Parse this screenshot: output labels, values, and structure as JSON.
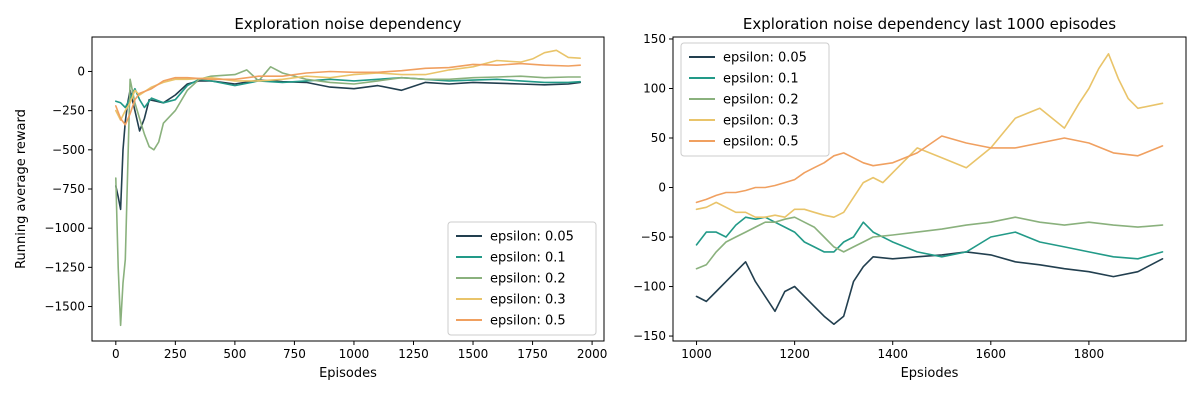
{
  "colors": {
    "epsilon_0_05": "#223f4f",
    "epsilon_0_1": "#229a88",
    "epsilon_0_2": "#8ab17d",
    "epsilon_0_3": "#e9c46a",
    "epsilon_0_5": "#f0a060"
  },
  "chart_data": [
    {
      "type": "line",
      "title": "Exploration noise dependency",
      "xlabel": "Episodes",
      "ylabel": "Running average reward",
      "xlim": [
        -100,
        2050
      ],
      "ylim": [
        -1720,
        220
      ],
      "xticks": [
        0,
        250,
        500,
        750,
        1000,
        1250,
        1500,
        1750,
        2000
      ],
      "yticks": [
        0,
        -250,
        -500,
        -750,
        -1000,
        -1250,
        -1500
      ],
      "grid": false,
      "legend_position": "lower-right",
      "series": [
        {
          "name": "epsilon: 0.05",
          "color": "#223f4f",
          "x": [
            0,
            10,
            20,
            30,
            40,
            50,
            60,
            80,
            100,
            120,
            140,
            170,
            200,
            250,
            300,
            350,
            400,
            500,
            600,
            700,
            800,
            900,
            1000,
            1100,
            1200,
            1300,
            1400,
            1500,
            1600,
            1700,
            1800,
            1900,
            1950
          ],
          "y": [
            -730,
            -800,
            -880,
            -500,
            -320,
            -200,
            -120,
            -250,
            -380,
            -300,
            -180,
            -190,
            -200,
            -150,
            -80,
            -60,
            -60,
            -80,
            -55,
            -65,
            -70,
            -100,
            -110,
            -90,
            -120,
            -70,
            -80,
            -70,
            -75,
            -80,
            -85,
            -80,
            -70
          ]
        },
        {
          "name": "epsilon: 0.1",
          "color": "#229a88",
          "x": [
            0,
            20,
            40,
            60,
            80,
            100,
            120,
            150,
            200,
            250,
            300,
            350,
            400,
            500,
            600,
            700,
            800,
            900,
            1000,
            1100,
            1200,
            1300,
            1400,
            1500,
            1600,
            1700,
            1800,
            1900,
            1950
          ],
          "y": [
            -190,
            -200,
            -230,
            -170,
            -110,
            -180,
            -230,
            -170,
            -200,
            -180,
            -90,
            -50,
            -60,
            -90,
            -60,
            -70,
            -60,
            -50,
            -60,
            -50,
            -40,
            -50,
            -60,
            -55,
            -50,
            -60,
            -70,
            -70,
            -65
          ]
        },
        {
          "name": "epsilon: 0.2",
          "color": "#8ab17d",
          "x": [
            0,
            10,
            20,
            30,
            40,
            60,
            80,
            100,
            120,
            140,
            160,
            180,
            200,
            250,
            300,
            350,
            400,
            500,
            550,
            600,
            650,
            700,
            800,
            900,
            1000,
            1100,
            1200,
            1300,
            1400,
            1500,
            1600,
            1700,
            1800,
            1900,
            1950
          ],
          "y": [
            -680,
            -1250,
            -1620,
            -1350,
            -1200,
            -50,
            -200,
            -300,
            -400,
            -480,
            -500,
            -450,
            -330,
            -250,
            -120,
            -50,
            -30,
            -20,
            10,
            -60,
            30,
            -10,
            -50,
            -70,
            -80,
            -60,
            -40,
            -50,
            -50,
            -40,
            -35,
            -30,
            -40,
            -35,
            -35
          ]
        },
        {
          "name": "epsilon: 0.3",
          "color": "#e9c46a",
          "x": [
            0,
            20,
            40,
            60,
            80,
            100,
            150,
            200,
            250,
            300,
            400,
            500,
            600,
            700,
            800,
            900,
            1000,
            1100,
            1200,
            1300,
            1400,
            1500,
            1600,
            1700,
            1750,
            1800,
            1850,
            1900,
            1950
          ],
          "y": [
            -250,
            -310,
            -250,
            -200,
            -120,
            -150,
            -100,
            -70,
            -50,
            -50,
            -40,
            -60,
            -60,
            -50,
            -30,
            -40,
            -20,
            -10,
            -20,
            -20,
            10,
            30,
            70,
            60,
            80,
            120,
            135,
            90,
            85
          ]
        },
        {
          "name": "epsilon: 0.5",
          "color": "#f0a060",
          "x": [
            0,
            20,
            40,
            60,
            80,
            100,
            150,
            200,
            250,
            300,
            400,
            500,
            600,
            700,
            800,
            900,
            1000,
            1100,
            1200,
            1300,
            1400,
            1500,
            1600,
            1700,
            1800,
            1900,
            1950
          ],
          "y": [
            -220,
            -300,
            -340,
            -270,
            -180,
            -140,
            -110,
            -60,
            -40,
            -40,
            -50,
            -50,
            -30,
            -30,
            -10,
            0,
            -5,
            -5,
            5,
            20,
            25,
            45,
            40,
            50,
            40,
            35,
            40
          ]
        }
      ]
    },
    {
      "type": "line",
      "title": "Exploration noise dependency last 1000 episodes",
      "xlabel": "Epsiodes",
      "ylabel": "",
      "xlim": [
        952,
        1998
      ],
      "ylim": [
        -155,
        152
      ],
      "xticks": [
        1000,
        1200,
        1400,
        1600,
        1800
      ],
      "yticks": [
        150,
        100,
        50,
        0,
        -50,
        -100,
        -150
      ],
      "grid": false,
      "legend_position": "upper-left",
      "series": [
        {
          "name": "epsilon: 0.05",
          "color": "#223f4f",
          "x": [
            1000,
            1020,
            1040,
            1060,
            1080,
            1100,
            1120,
            1140,
            1160,
            1180,
            1200,
            1220,
            1240,
            1260,
            1280,
            1300,
            1320,
            1340,
            1360,
            1400,
            1450,
            1500,
            1550,
            1600,
            1650,
            1700,
            1750,
            1800,
            1850,
            1900,
            1950
          ],
          "y": [
            -110,
            -115,
            -105,
            -95,
            -85,
            -75,
            -95,
            -110,
            -125,
            -105,
            -100,
            -110,
            -120,
            -130,
            -138,
            -130,
            -95,
            -80,
            -70,
            -72,
            -70,
            -68,
            -65,
            -68,
            -75,
            -78,
            -82,
            -85,
            -90,
            -85,
            -72
          ]
        },
        {
          "name": "epsilon: 0.1",
          "color": "#229a88",
          "x": [
            1000,
            1020,
            1040,
            1060,
            1080,
            1100,
            1120,
            1140,
            1160,
            1180,
            1200,
            1220,
            1240,
            1260,
            1280,
            1300,
            1320,
            1340,
            1360,
            1400,
            1450,
            1500,
            1550,
            1600,
            1650,
            1700,
            1750,
            1800,
            1850,
            1900,
            1950
          ],
          "y": [
            -58,
            -45,
            -45,
            -50,
            -38,
            -30,
            -32,
            -30,
            -35,
            -40,
            -45,
            -55,
            -60,
            -65,
            -65,
            -55,
            -50,
            -35,
            -45,
            -55,
            -65,
            -70,
            -65,
            -50,
            -45,
            -55,
            -60,
            -65,
            -70,
            -72,
            -65
          ]
        },
        {
          "name": "epsilon: 0.2",
          "color": "#8ab17d",
          "x": [
            1000,
            1020,
            1040,
            1060,
            1080,
            1100,
            1120,
            1140,
            1160,
            1180,
            1200,
            1220,
            1240,
            1260,
            1280,
            1300,
            1320,
            1340,
            1360,
            1400,
            1450,
            1500,
            1550,
            1600,
            1650,
            1700,
            1750,
            1800,
            1850,
            1900,
            1950
          ],
          "y": [
            -82,
            -78,
            -65,
            -55,
            -50,
            -45,
            -40,
            -35,
            -35,
            -32,
            -30,
            -35,
            -40,
            -50,
            -60,
            -65,
            -60,
            -55,
            -50,
            -48,
            -45,
            -42,
            -38,
            -35,
            -30,
            -35,
            -38,
            -35,
            -38,
            -40,
            -38
          ]
        },
        {
          "name": "epsilon: 0.3",
          "color": "#e9c46a",
          "x": [
            1000,
            1020,
            1040,
            1060,
            1080,
            1100,
            1120,
            1140,
            1160,
            1180,
            1200,
            1220,
            1240,
            1260,
            1280,
            1300,
            1320,
            1340,
            1360,
            1380,
            1400,
            1420,
            1450,
            1500,
            1550,
            1600,
            1650,
            1700,
            1750,
            1780,
            1800,
            1820,
            1840,
            1860,
            1880,
            1900,
            1950
          ],
          "y": [
            -22,
            -20,
            -15,
            -20,
            -25,
            -25,
            -30,
            -30,
            -28,
            -30,
            -22,
            -22,
            -25,
            -28,
            -30,
            -25,
            -10,
            5,
            10,
            5,
            15,
            25,
            40,
            30,
            20,
            40,
            70,
            80,
            60,
            85,
            100,
            120,
            135,
            110,
            90,
            80,
            85
          ]
        },
        {
          "name": "epsilon: 0.5",
          "color": "#f0a060",
          "x": [
            1000,
            1020,
            1040,
            1060,
            1080,
            1100,
            1120,
            1140,
            1160,
            1180,
            1200,
            1220,
            1240,
            1260,
            1280,
            1300,
            1320,
            1340,
            1360,
            1400,
            1450,
            1500,
            1550,
            1600,
            1650,
            1700,
            1750,
            1800,
            1850,
            1900,
            1950
          ],
          "y": [
            -15,
            -12,
            -8,
            -5,
            -5,
            -3,
            0,
            0,
            2,
            5,
            8,
            15,
            20,
            25,
            32,
            35,
            30,
            25,
            22,
            25,
            35,
            52,
            45,
            40,
            40,
            45,
            50,
            45,
            35,
            32,
            42
          ]
        }
      ]
    }
  ]
}
